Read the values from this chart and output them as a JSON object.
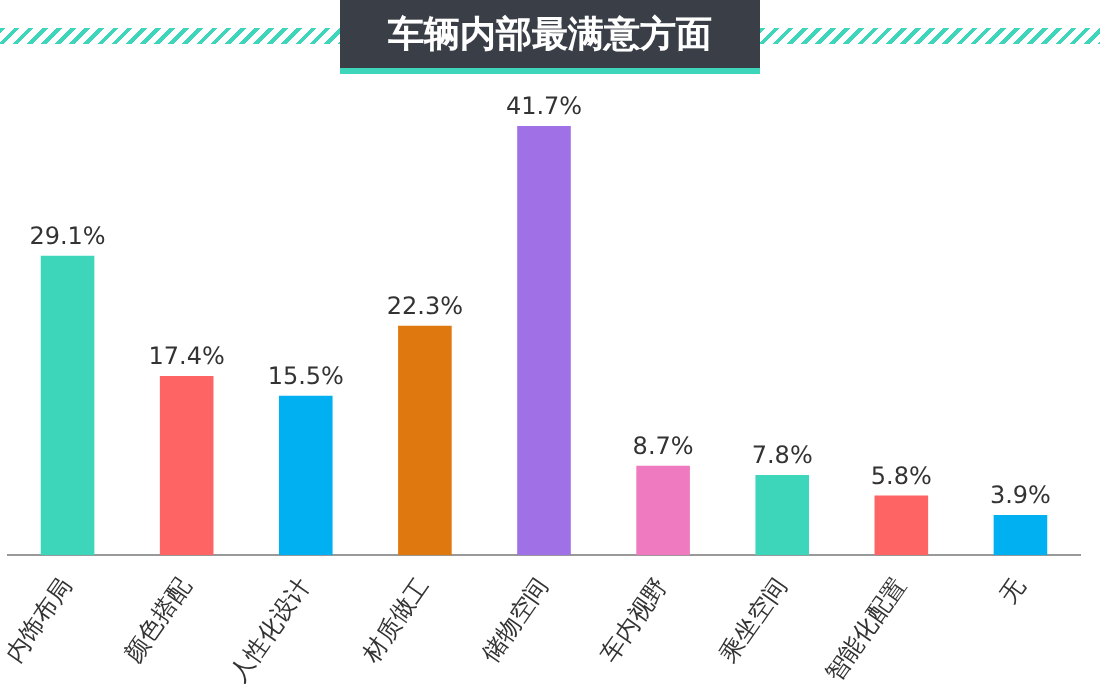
{
  "chart_data": {
    "type": "bar",
    "title": "车辆内部最满意方面",
    "categories": [
      "内饰布局",
      "颜色搭配",
      "人性化设计",
      "材质做工",
      "储物空间",
      "车内视野",
      "乘坐空间",
      "智能化配置",
      "无"
    ],
    "values": [
      29.1,
      17.4,
      15.5,
      22.3,
      41.7,
      8.7,
      7.8,
      5.8,
      3.9
    ],
    "colors": [
      "#3dd6bb",
      "#ff6464",
      "#00b0f0",
      "#e07810",
      "#a070e6",
      "#f07ac0",
      "#3dd6bb",
      "#ff6464",
      "#00b0f0"
    ],
    "value_labels": [
      "29.1%",
      "17.4%",
      "15.5%",
      "22.3%",
      "41.7%",
      "8.7%",
      "7.8%",
      "5.8%",
      "3.9%"
    ],
    "tick_labels": "x",
    "grid": false,
    "legend": false
  }
}
